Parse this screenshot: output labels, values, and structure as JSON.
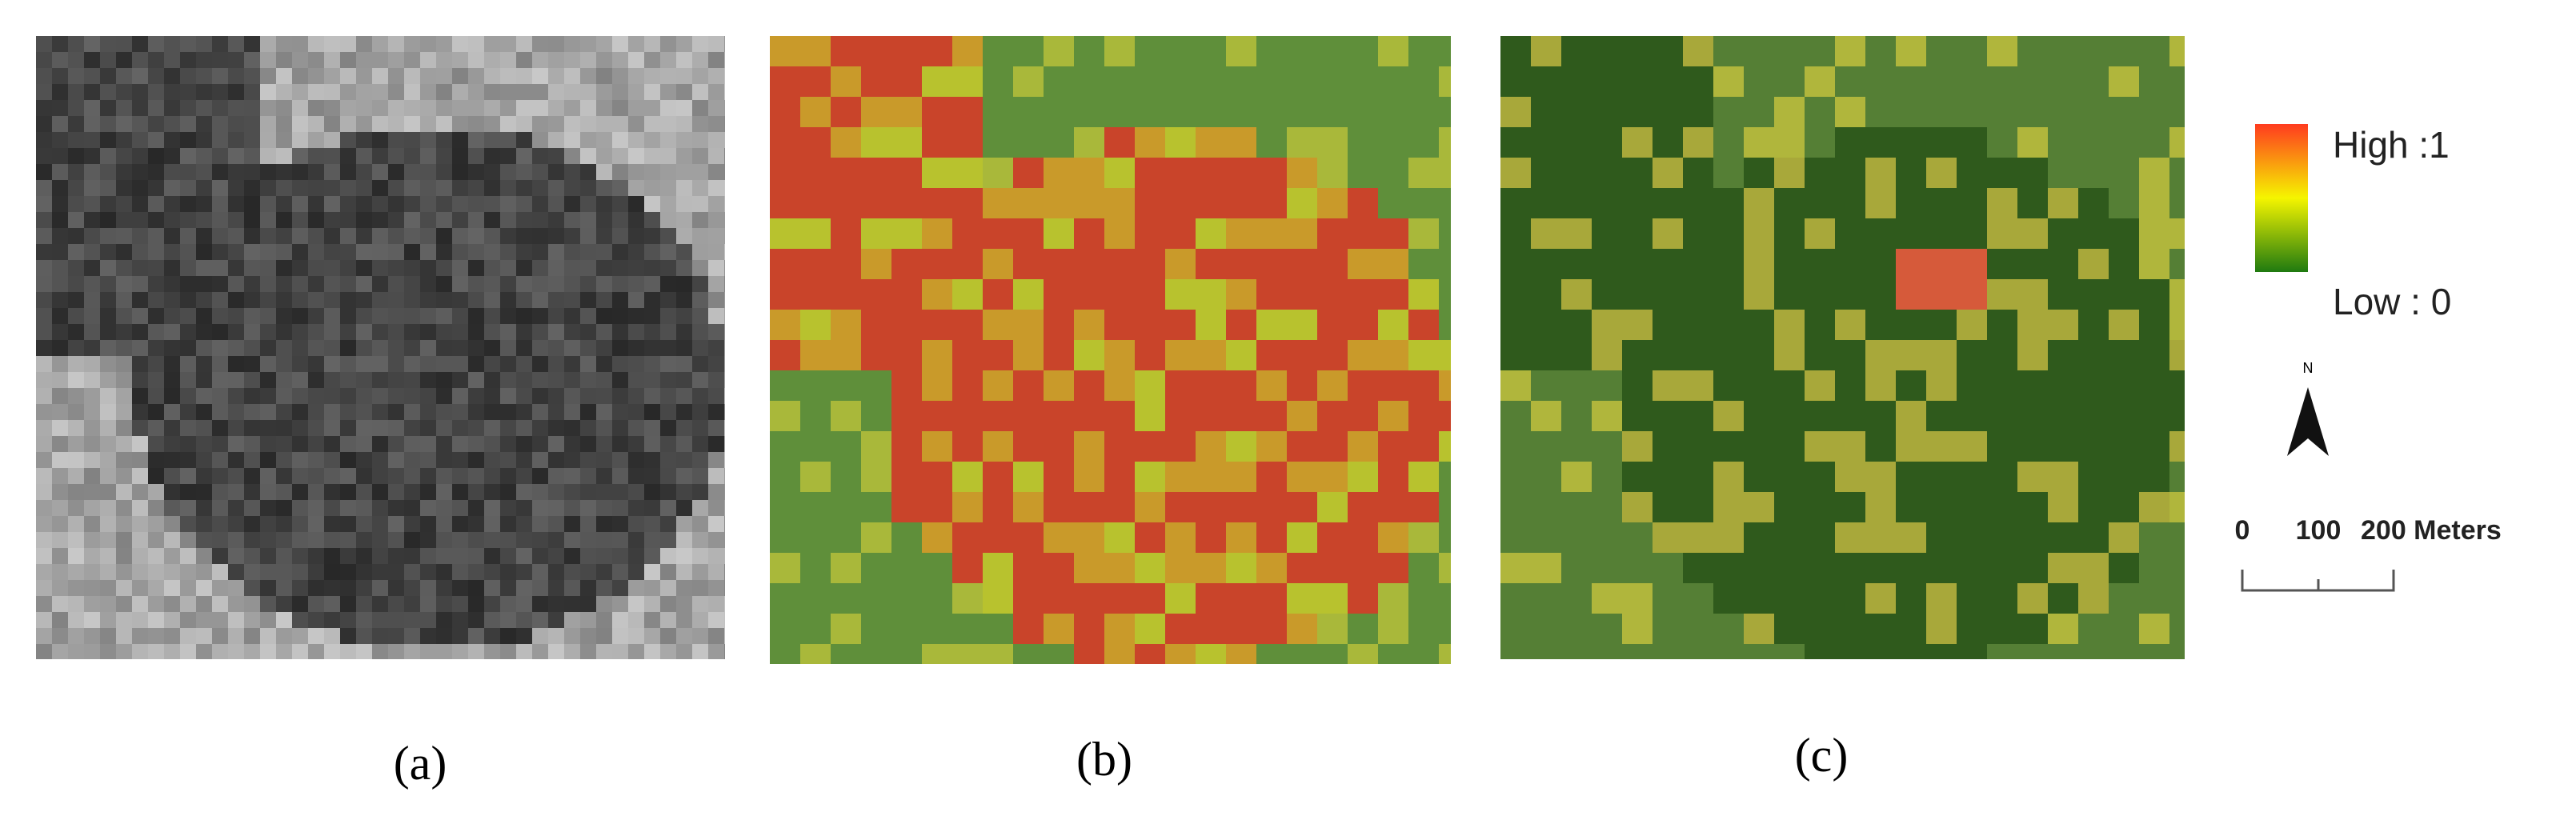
{
  "panels": [
    {
      "label": "(a)"
    },
    {
      "label": "(b)"
    },
    {
      "label": "(c)"
    }
  ],
  "legend": {
    "high": "High :1",
    "low": "Low : 0"
  },
  "north_arrow": {
    "label": "N"
  },
  "scale_bar": {
    "labels": [
      "0",
      "100",
      "200 Meters"
    ]
  }
}
